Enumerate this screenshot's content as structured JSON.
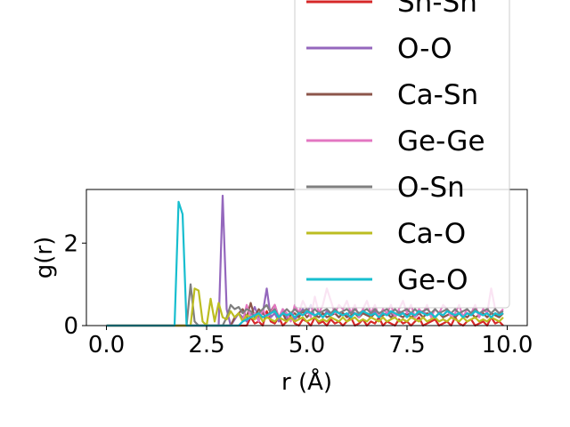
{
  "chart_data": {
    "type": "line",
    "title": "",
    "xlabel": "r (Å)",
    "ylabel": "g(r)",
    "xlim": [
      -0.5,
      10.5
    ],
    "ylim": [
      0,
      3.3
    ],
    "xticks": [
      "0.0",
      "2.5",
      "5.0",
      "7.5",
      "10.0"
    ],
    "yticks": [
      "0",
      "2"
    ],
    "grid": false,
    "legend_position": "upper-right, extends above the axes",
    "legend_entries": [
      "Sn-Sn",
      "O-O",
      "Ca-Sn",
      "Ge-Ge",
      "O-Sn",
      "Ca-O",
      "Ge-O"
    ],
    "x": [
      0,
      0.1,
      0.2,
      0.3,
      0.4,
      0.5,
      0.6,
      0.7,
      0.8,
      0.9,
      1.0,
      1.1,
      1.2,
      1.3,
      1.4,
      1.5,
      1.6,
      1.7,
      1.8,
      1.9,
      2.0,
      2.1,
      2.2,
      2.3,
      2.4,
      2.5,
      2.6,
      2.7,
      2.8,
      2.9,
      3.0,
      3.1,
      3.2,
      3.3,
      3.4,
      3.5,
      3.6,
      3.7,
      3.8,
      3.9,
      4.0,
      4.1,
      4.2,
      4.3,
      4.4,
      4.5,
      4.6,
      4.7,
      4.8,
      4.9,
      5.0,
      5.1,
      5.2,
      5.3,
      5.4,
      5.5,
      5.6,
      5.7,
      5.8,
      5.9,
      6.0,
      6.1,
      6.2,
      6.3,
      6.4,
      6.5,
      6.6,
      6.7,
      6.8,
      6.9,
      7.0,
      7.1,
      7.2,
      7.3,
      7.4,
      7.5,
      7.6,
      7.7,
      7.8,
      7.9,
      8.0,
      8.1,
      8.2,
      8.3,
      8.4,
      8.5,
      8.6,
      8.7,
      8.8,
      8.9,
      9.0,
      9.1,
      9.2,
      9.3,
      9.4,
      9.5,
      9.6,
      9.7,
      9.8,
      9.9
    ],
    "series": [
      {
        "name": "Sn-Sn",
        "color": "#d62728",
        "values": [
          0,
          0,
          0,
          0,
          0,
          0,
          0,
          0,
          0,
          0,
          0,
          0,
          0,
          0,
          0,
          0,
          0,
          0,
          0,
          0,
          0,
          0,
          0,
          0,
          0,
          0,
          0,
          0,
          0,
          0,
          0,
          0,
          0,
          0,
          0,
          0,
          0.2,
          0.05,
          0.1,
          0,
          0.35,
          0.1,
          0.05,
          0.2,
          0,
          0.1,
          0.3,
          0.05,
          0,
          0.15,
          0.1,
          0,
          0.2,
          0.05,
          0.1,
          0,
          0.15,
          0.05,
          0.1,
          0,
          0.1,
          0.2,
          0,
          0.05,
          0.15,
          0,
          0.1,
          0.05,
          0.2,
          0,
          0.1,
          0.05,
          0,
          0.15,
          0.05,
          0.1,
          0,
          0.1,
          0.2,
          0,
          0.05,
          0.1,
          0.15,
          0,
          0.05,
          0.1,
          0,
          0.2,
          0.05,
          0,
          0.1,
          0.15,
          0,
          0.05,
          0.1,
          0,
          0.2,
          0.05,
          0.1,
          0
        ]
      },
      {
        "name": "O-O",
        "color": "#9467bd",
        "values": [
          0,
          0,
          0,
          0,
          0,
          0,
          0,
          0,
          0,
          0,
          0,
          0,
          0,
          0,
          0,
          0,
          0,
          0,
          0,
          0,
          0,
          0,
          0,
          0,
          0,
          0,
          0,
          0,
          0,
          3.15,
          0.4,
          0,
          0.15,
          0.3,
          0.2,
          0.1,
          0.25,
          0.45,
          0.2,
          0.3,
          0.9,
          0.2,
          0.3,
          0.1,
          0.4,
          0.2,
          0.3,
          0.15,
          0.25,
          0.4,
          0.3,
          0.5,
          0.2,
          0.3,
          0.2,
          0.35,
          0.25,
          0.3,
          0.2,
          0.3,
          0.25,
          0.35,
          0.3,
          0.2,
          0.3,
          0.25,
          0.3,
          0.35,
          0.2,
          0.3,
          0.25,
          0.3,
          0.2,
          0.35,
          0.3,
          0.25,
          0.3,
          0.2,
          0.3,
          0.35,
          0.25,
          0.3,
          0.2,
          0.3,
          0.25,
          0.35,
          0.3,
          0.25,
          0.3,
          0.2,
          0.3,
          0.25,
          0.35,
          0.3,
          0.25,
          0.3,
          0.2,
          0.3,
          0.25,
          0.3
        ]
      },
      {
        "name": "Ca-Sn",
        "color": "#8c564b",
        "values": [
          0,
          0,
          0,
          0,
          0,
          0,
          0,
          0,
          0,
          0,
          0,
          0,
          0,
          0,
          0,
          0,
          0,
          0,
          0,
          0,
          0,
          0,
          0,
          0,
          0,
          0,
          0,
          0,
          0,
          0,
          0,
          0,
          0.2,
          0.3,
          0.4,
          0.2,
          0.55,
          0.2,
          0.4,
          0.3,
          0.2,
          0.35,
          0.5,
          0.2,
          0.3,
          0.1,
          0.25,
          0.3,
          0.2,
          0.35,
          0.2,
          0.3,
          0.25,
          0.2,
          0.3,
          0.2,
          0.25,
          0.3,
          0.2,
          0.3,
          0.2,
          0.25,
          0.3,
          0.2,
          0.3,
          0.25,
          0.2,
          0.3,
          0.2,
          0.25,
          0.3,
          0.2,
          0.3,
          0.25,
          0.2,
          0.3,
          0.2,
          0.25,
          0.3,
          0.2,
          0.3,
          0.25,
          0.2,
          0.3,
          0.2,
          0.25,
          0.3,
          0.2,
          0.3,
          0.25,
          0.2,
          0.3,
          0.2,
          0.25,
          0.3,
          0.2,
          0.3,
          0.25,
          0.2,
          0.3
        ]
      },
      {
        "name": "Ge-Ge",
        "color": "#e377c2",
        "values": [
          0,
          0,
          0,
          0,
          0,
          0,
          0,
          0,
          0,
          0,
          0,
          0,
          0,
          0,
          0,
          0,
          0,
          0,
          0,
          0,
          0,
          0,
          0,
          0,
          0,
          0,
          0,
          0,
          0,
          0,
          0,
          0,
          0,
          0,
          0.1,
          0.5,
          0.2,
          0.3,
          0.1,
          0.4,
          0.2,
          0.3,
          0.5,
          0.2,
          0.4,
          0.3,
          0.1,
          0.5,
          0.3,
          0.6,
          0.4,
          0.2,
          0.7,
          0.3,
          0.5,
          0.9,
          0.6,
          0.3,
          0.5,
          0.4,
          0.6,
          0.3,
          0.5,
          0.2,
          0.4,
          0.6,
          0.3,
          0.5,
          0.2,
          0.4,
          0.3,
          0.5,
          0.2,
          0.4,
          0.6,
          0.3,
          0.5,
          0.2,
          0.4,
          0.3,
          0.5,
          0.2,
          0.4,
          0.3,
          0.5,
          0.4,
          0.2,
          0.3,
          0.5,
          0.2,
          0.4,
          0.3,
          0.5,
          0.2,
          0.4,
          0.3,
          0.9,
          0.4,
          0.3,
          0.4
        ]
      },
      {
        "name": "O-Sn",
        "color": "#7f7f7f",
        "values": [
          0,
          0,
          0,
          0,
          0,
          0,
          0,
          0,
          0,
          0,
          0,
          0,
          0,
          0,
          0,
          0,
          0,
          0,
          0,
          0,
          0,
          1.0,
          0.1,
          0,
          0,
          0,
          0,
          0,
          0,
          0,
          0.2,
          0.5,
          0.4,
          0.45,
          0.3,
          0.4,
          0.35,
          0.2,
          0.3,
          0.4,
          0.5,
          0.3,
          0.4,
          0.2,
          0.3,
          0.4,
          0.3,
          0.4,
          0.3,
          0.35,
          0.4,
          0.3,
          0.4,
          0.3,
          0.35,
          0.4,
          0.3,
          0.4,
          0.3,
          0.35,
          0.4,
          0.3,
          0.4,
          0.3,
          0.35,
          0.4,
          0.3,
          0.4,
          0.3,
          0.35,
          0.4,
          0.3,
          0.4,
          0.3,
          0.35,
          0.4,
          0.3,
          0.4,
          0.3,
          0.35,
          0.4,
          0.3,
          0.4,
          0.3,
          0.35,
          0.4,
          0.3,
          0.4,
          0.3,
          0.35,
          0.4,
          0.3,
          0.4,
          0.3,
          0.35,
          0.4,
          0.3,
          0.4,
          0.3,
          0.35
        ]
      },
      {
        "name": "Ca-O",
        "color": "#bcbd22",
        "values": [
          0,
          0,
          0,
          0,
          0,
          0,
          0,
          0,
          0,
          0,
          0,
          0,
          0,
          0,
          0,
          0,
          0,
          0,
          0,
          0,
          0,
          0,
          0.9,
          0.85,
          0.1,
          0,
          0.65,
          0.1,
          0.55,
          0.2,
          0.15,
          0.35,
          0.2,
          0.3,
          0.1,
          0.25,
          0.2,
          0.15,
          0.3,
          0.1,
          0.2,
          0.15,
          0.1,
          0.2,
          0.15,
          0.1,
          0.2,
          0.1,
          0.15,
          0.2,
          0.1,
          0.15,
          0.2,
          0.1,
          0.15,
          0.1,
          0.2,
          0.15,
          0.1,
          0.2,
          0.1,
          0.15,
          0.2,
          0.1,
          0.15,
          0.1,
          0.2,
          0.15,
          0.1,
          0.2,
          0.1,
          0.15,
          0.2,
          0.1,
          0.15,
          0.1,
          0.2,
          0.15,
          0.1,
          0.2,
          0.1,
          0.15,
          0.2,
          0.1,
          0.15,
          0.1,
          0.2,
          0.15,
          0.1,
          0.2,
          0.1,
          0.15,
          0.2,
          0.1,
          0.15,
          0.1,
          0.2,
          0.15,
          0.1,
          0.2
        ]
      },
      {
        "name": "Ge-O",
        "color": "#17becf",
        "values": [
          0,
          0,
          0,
          0,
          0,
          0,
          0,
          0,
          0,
          0,
          0,
          0,
          0,
          0,
          0,
          0,
          0,
          0,
          3.0,
          2.7,
          0,
          0,
          0,
          0,
          0,
          0,
          0,
          0,
          0,
          0,
          0,
          0,
          0,
          0,
          0.1,
          0.15,
          0.2,
          0.25,
          0.3,
          0.2,
          0.25,
          0.3,
          0.35,
          0.2,
          0.3,
          0.25,
          0.3,
          0.2,
          0.3,
          0.25,
          0.35,
          0.3,
          0.25,
          0.3,
          0.2,
          0.3,
          0.25,
          0.35,
          0.3,
          0.25,
          0.3,
          0.2,
          0.3,
          0.25,
          0.35,
          0.3,
          0.25,
          0.3,
          0.2,
          0.3,
          0.25,
          0.35,
          0.3,
          0.25,
          0.3,
          0.2,
          0.3,
          0.25,
          0.35,
          0.3,
          0.25,
          0.3,
          0.2,
          0.3,
          0.25,
          0.35,
          0.3,
          0.25,
          0.3,
          0.2,
          0.3,
          0.25,
          0.35,
          0.3,
          0.25,
          0.3,
          0.2,
          0.3,
          0.25,
          0.3
        ]
      }
    ]
  }
}
